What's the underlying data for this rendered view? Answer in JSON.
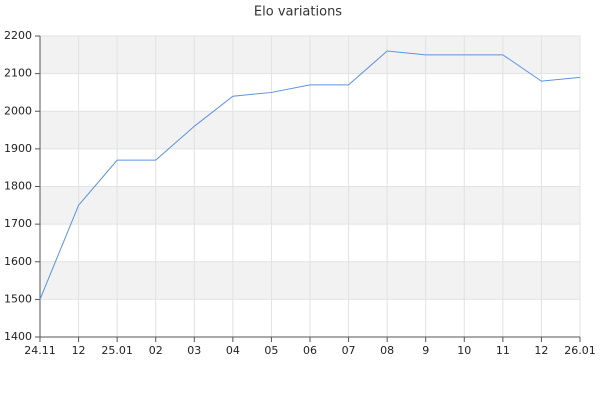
{
  "chart_data": {
    "type": "line",
    "title": "Elo variations",
    "categories": [
      "24.11",
      "12",
      "25.01",
      "02",
      "03",
      "04",
      "05",
      "06",
      "07",
      "08",
      "9",
      "10",
      "11",
      "12",
      "26.01"
    ],
    "values": [
      1500,
      1750,
      1870,
      1870,
      1960,
      2040,
      2050,
      2070,
      2070,
      2160,
      2150,
      2150,
      2150,
      2080,
      2090
    ],
    "color": "#5b93e0",
    "ylim": [
      1400,
      2200
    ],
    "yticks": [
      1400,
      1500,
      1600,
      1700,
      1800,
      1900,
      2000,
      2100,
      2200
    ],
    "grid": true,
    "alternate_bands": true
  }
}
